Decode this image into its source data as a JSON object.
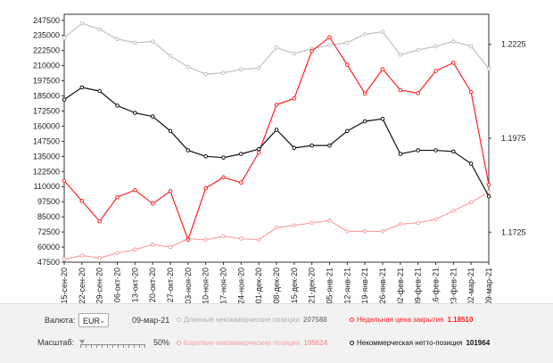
{
  "chart_data": {
    "type": "line",
    "x": [
      "15-сен-20",
      "22-сен-20",
      "29-сен-20",
      "06-окт-20",
      "13-окт-20",
      "20-окт-20",
      "27-окт-20",
      "03-ноя-20",
      "10-ноя-20",
      "17-ноя-20",
      "24-ноя-20",
      "01-дек-20",
      "08-дек-20",
      "15-дек-20",
      "21-дек-20",
      "05-янв-21",
      "12-янв-21",
      "19-янв-21",
      "26-янв-21",
      "02-фев-21",
      "09-фев-21",
      "16-фев-21",
      "23-фев-21",
      "02-мар-21",
      "09-мар-21"
    ],
    "left_axis": {
      "ylim": [
        47500,
        252500
      ],
      "ticks": [
        47500,
        60000,
        72500,
        85000,
        97500,
        110000,
        122500,
        135000,
        147500,
        160000,
        172500,
        185000,
        197500,
        210000,
        222500,
        235000,
        247500
      ]
    },
    "right_axis": {
      "ylim": [
        1.1645,
        1.2305
      ],
      "ticks": [
        "1.1725",
        "1.1975",
        "1.2225"
      ],
      "tick_values": [
        1.1725,
        1.1975,
        1.2225
      ]
    },
    "series": [
      {
        "name": "Длинные некоммерческие позиции",
        "axis": "left",
        "color": "#c0c0c0",
        "values": [
          233000,
          245000,
          240000,
          232000,
          229000,
          230000,
          218000,
          209000,
          203000,
          204000,
          207000,
          208000,
          225000,
          220000,
          224000,
          227000,
          229000,
          236000,
          238000,
          219000,
          223000,
          226000,
          230000,
          226000,
          207588
        ]
      },
      {
        "name": "Короткие некоммерческие позиции",
        "axis": "left",
        "color": "#f4a3a3",
        "values": [
          50000,
          53000,
          51000,
          55000,
          58000,
          62000,
          60000,
          67000,
          66000,
          69000,
          67000,
          66000,
          76000,
          78000,
          80000,
          82000,
          73000,
          73000,
          73000,
          79000,
          80000,
          83000,
          90000,
          97000,
          105624
        ]
      },
      {
        "name": "Недельная цена закрытия",
        "axis": "right",
        "color": "#ff2020",
        "values": [
          1.1862,
          1.1808,
          1.1754,
          1.1818,
          1.1837,
          1.1801,
          1.1834,
          1.1705,
          1.1842,
          1.1871,
          1.1857,
          1.1937,
          1.2064,
          1.2081,
          1.2207,
          1.2244,
          1.217,
          1.2094,
          1.2159,
          1.2103,
          1.2095,
          1.2154,
          1.2176,
          1.2098,
          1.1851
        ]
      },
      {
        "name": "Некоммерческая нетто-позиция",
        "axis": "left",
        "color": "#111111",
        "values": [
          182000,
          192000,
          189000,
          177000,
          171000,
          168000,
          156000,
          140000,
          135000,
          134000,
          137000,
          141000,
          157000,
          142000,
          144000,
          144000,
          156000,
          164000,
          166000,
          137000,
          140000,
          140000,
          139000,
          129000,
          101964
        ]
      }
    ]
  },
  "controls": {
    "currency_label": "Валюта:",
    "currency_value": "EUR",
    "date": "09-мар-21",
    "scale_label": "Масштаб:",
    "scale_value": "50%"
  },
  "legend": [
    {
      "label": "Длинные некоммерческие позиции",
      "value": "207588",
      "color": "#b5b5b5",
      "text_color": "#b0b0b0"
    },
    {
      "label": "Недельная цена закрытия",
      "value": "1.18510",
      "color": "#ff2020",
      "text_color": "#ff2020"
    },
    {
      "label": "Короткие некоммерческие позиции",
      "value": "105624",
      "color": "#f4a3a3",
      "text_color": "#f4a3a3"
    },
    {
      "label": "Некоммерческая нетто-позиция",
      "value": "101964",
      "color": "#111111",
      "text_color": "#111111"
    }
  ]
}
